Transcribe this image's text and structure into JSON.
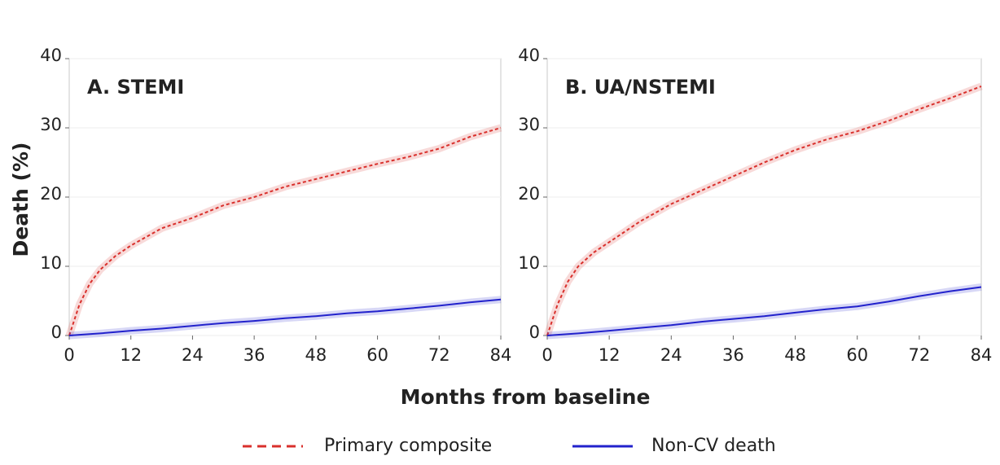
{
  "chart_data": [
    {
      "type": "line",
      "title": "A. STEMI",
      "x": [
        0,
        2,
        4,
        6,
        9,
        12,
        18,
        24,
        30,
        36,
        42,
        48,
        54,
        60,
        66,
        72,
        78,
        84
      ],
      "series": [
        {
          "name": "Primary composite",
          "color": "#d9302c",
          "dashed": true,
          "values": [
            0,
            4.5,
            7.5,
            9.5,
            11.5,
            13,
            15.5,
            17,
            18.8,
            20,
            21.5,
            22.6,
            23.7,
            24.8,
            25.8,
            27,
            28.7,
            30
          ]
        },
        {
          "name": "Non-CV death",
          "color": "#2222cc",
          "dashed": false,
          "values": [
            0,
            0.1,
            0.2,
            0.3,
            0.5,
            0.7,
            1,
            1.4,
            1.8,
            2.1,
            2.5,
            2.8,
            3.2,
            3.5,
            3.9,
            4.3,
            4.8,
            5.2
          ]
        }
      ],
      "xlim": [
        0,
        84
      ],
      "ylim": [
        0,
        40
      ],
      "xticks": [
        0,
        12,
        24,
        36,
        48,
        60,
        72,
        84
      ],
      "yticks": [
        0,
        10,
        20,
        30,
        40
      ],
      "grid": true
    },
    {
      "type": "line",
      "title": "B. UA/NSTEMI",
      "x": [
        0,
        2,
        4,
        6,
        9,
        12,
        18,
        24,
        30,
        36,
        42,
        48,
        54,
        60,
        66,
        72,
        78,
        84
      ],
      "series": [
        {
          "name": "Primary composite",
          "color": "#d9302c",
          "dashed": true,
          "values": [
            0,
            4.5,
            7.8,
            10,
            12,
            13.5,
            16.5,
            19,
            21,
            23,
            25,
            26.8,
            28.3,
            29.5,
            31,
            32.7,
            34.3,
            36
          ]
        },
        {
          "name": "Non-CV death",
          "color": "#2222cc",
          "dashed": false,
          "values": [
            0,
            0.1,
            0.2,
            0.3,
            0.5,
            0.7,
            1.1,
            1.5,
            2,
            2.4,
            2.8,
            3.3,
            3.8,
            4.2,
            4.9,
            5.7,
            6.4,
            7
          ]
        }
      ],
      "xlim": [
        0,
        84
      ],
      "ylim": [
        0,
        40
      ],
      "xticks": [
        0,
        12,
        24,
        36,
        48,
        60,
        72,
        84
      ],
      "yticks": [
        0,
        10,
        20,
        30,
        40
      ],
      "grid": true
    }
  ],
  "axis_labels": {
    "x": "Months from baseline",
    "y": "Death (%)"
  }
}
